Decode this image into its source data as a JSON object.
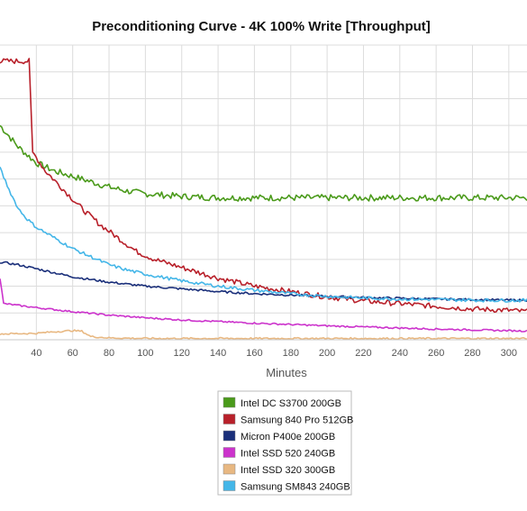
{
  "chart_data": {
    "type": "line",
    "title": "Preconditioning Curve - 4K 100% Write [Throughput]",
    "xlabel": "Minutes",
    "ylabel": "",
    "xlim": [
      20,
      310
    ],
    "x_ticks": [
      40,
      60,
      80,
      100,
      120,
      140,
      160,
      180,
      200,
      220,
      240,
      260,
      280,
      300
    ],
    "ylim": [
      0,
      11
    ],
    "grid": true,
    "legend_position": "bottom",
    "series": [
      {
        "name": "Intel DC S3700 200GB",
        "color": "#4a9a1a",
        "points": [
          [
            20,
            8.0
          ],
          [
            25,
            7.6
          ],
          [
            30,
            7.2
          ],
          [
            35,
            6.9
          ],
          [
            40,
            6.6
          ],
          [
            50,
            6.3
          ],
          [
            60,
            6.1
          ],
          [
            70,
            5.9
          ],
          [
            80,
            5.7
          ],
          [
            90,
            5.55
          ],
          [
            100,
            5.45
          ],
          [
            120,
            5.35
          ],
          [
            140,
            5.3
          ],
          [
            160,
            5.3
          ],
          [
            180,
            5.3
          ],
          [
            200,
            5.3
          ],
          [
            220,
            5.3
          ],
          [
            240,
            5.3
          ],
          [
            260,
            5.3
          ],
          [
            280,
            5.3
          ],
          [
            300,
            5.3
          ],
          [
            310,
            5.3
          ]
        ]
      },
      {
        "name": "Samsung 840 Pro 512GB",
        "color": "#b8202a",
        "points": [
          [
            20,
            10.4
          ],
          [
            36,
            10.4
          ],
          [
            38,
            7.0
          ],
          [
            45,
            6.3
          ],
          [
            55,
            5.6
          ],
          [
            65,
            4.9
          ],
          [
            75,
            4.3
          ],
          [
            85,
            3.8
          ],
          [
            95,
            3.3
          ],
          [
            105,
            3.0
          ],
          [
            120,
            2.7
          ],
          [
            140,
            2.3
          ],
          [
            160,
            2.0
          ],
          [
            180,
            1.8
          ],
          [
            200,
            1.6
          ],
          [
            220,
            1.45
          ],
          [
            240,
            1.35
          ],
          [
            260,
            1.25
          ],
          [
            280,
            1.15
          ],
          [
            300,
            1.1
          ],
          [
            310,
            1.05
          ]
        ]
      },
      {
        "name": "Micron P400e 200GB",
        "color": "#1a2f7a",
        "points": [
          [
            20,
            2.9
          ],
          [
            30,
            2.8
          ],
          [
            40,
            2.65
          ],
          [
            50,
            2.5
          ],
          [
            60,
            2.35
          ],
          [
            80,
            2.15
          ],
          [
            100,
            2.0
          ],
          [
            120,
            1.9
          ],
          [
            140,
            1.8
          ],
          [
            160,
            1.72
          ],
          [
            180,
            1.67
          ],
          [
            200,
            1.62
          ],
          [
            220,
            1.58
          ],
          [
            240,
            1.55
          ],
          [
            260,
            1.52
          ],
          [
            280,
            1.5
          ],
          [
            300,
            1.48
          ],
          [
            310,
            1.48
          ]
        ]
      },
      {
        "name": "Intel SSD 520 240GB",
        "color": "#cc33cc",
        "points": [
          [
            20,
            2.3
          ],
          [
            22,
            1.35
          ],
          [
            40,
            1.2
          ],
          [
            60,
            1.05
          ],
          [
            80,
            0.92
          ],
          [
            100,
            0.82
          ],
          [
            120,
            0.74
          ],
          [
            140,
            0.68
          ],
          [
            160,
            0.62
          ],
          [
            180,
            0.57
          ],
          [
            200,
            0.52
          ],
          [
            220,
            0.48
          ],
          [
            240,
            0.44
          ],
          [
            260,
            0.4
          ],
          [
            280,
            0.37
          ],
          [
            300,
            0.34
          ],
          [
            310,
            0.33
          ]
        ]
      },
      {
        "name": "Intel SSD 320 300GB",
        "color": "#e8b882",
        "points": [
          [
            20,
            0.22
          ],
          [
            40,
            0.24
          ],
          [
            50,
            0.3
          ],
          [
            60,
            0.34
          ],
          [
            65,
            0.32
          ],
          [
            70,
            0.12
          ],
          [
            80,
            0.07
          ],
          [
            100,
            0.05
          ],
          [
            140,
            0.05
          ],
          [
            180,
            0.05
          ],
          [
            220,
            0.05
          ],
          [
            260,
            0.05
          ],
          [
            300,
            0.05
          ],
          [
            310,
            0.05
          ]
        ]
      },
      {
        "name": "Samsung SM843 240GB",
        "color": "#44b6e8",
        "points": [
          [
            20,
            6.4
          ],
          [
            25,
            5.6
          ],
          [
            30,
            4.9
          ],
          [
            35,
            4.5
          ],
          [
            40,
            4.2
          ],
          [
            50,
            3.8
          ],
          [
            60,
            3.4
          ],
          [
            70,
            3.1
          ],
          [
            80,
            2.8
          ],
          [
            90,
            2.6
          ],
          [
            100,
            2.45
          ],
          [
            120,
            2.2
          ],
          [
            140,
            2.0
          ],
          [
            160,
            1.85
          ],
          [
            180,
            1.72
          ],
          [
            200,
            1.62
          ],
          [
            220,
            1.56
          ],
          [
            240,
            1.52
          ],
          [
            260,
            1.5
          ],
          [
            280,
            1.48
          ],
          [
            300,
            1.47
          ],
          [
            310,
            1.47
          ]
        ]
      }
    ]
  }
}
